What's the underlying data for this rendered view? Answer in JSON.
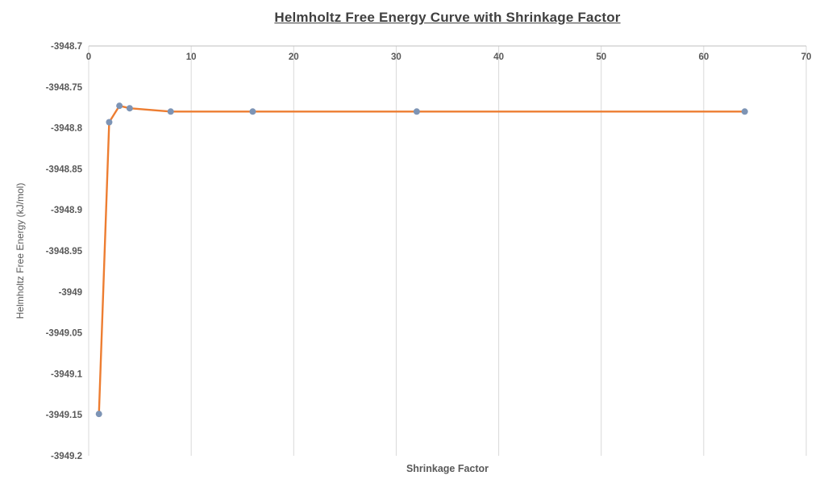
{
  "chart_data": {
    "type": "line",
    "title": "Helmholtz Free Energy Curve with Shrinkage Factor",
    "xlabel": "Shrinkage Factor",
    "ylabel": "Helmholtz Free Energy (kJ/mol)",
    "x": [
      1,
      2,
      3,
      4,
      8,
      16,
      32,
      64
    ],
    "y": [
      -3949.149,
      -3948.793,
      -3948.773,
      -3948.776,
      -3948.78,
      -3948.78,
      -3948.78,
      -3948.78
    ],
    "xlim": [
      0,
      70
    ],
    "ylim": [
      -3949.2,
      -3948.7
    ],
    "x_ticks": [
      {
        "value": 0,
        "label": "0"
      },
      {
        "value": 10,
        "label": "10"
      },
      {
        "value": 20,
        "label": "20"
      },
      {
        "value": 30,
        "label": "30"
      },
      {
        "value": 40,
        "label": "40"
      },
      {
        "value": 50,
        "label": "50"
      },
      {
        "value": 60,
        "label": "60"
      },
      {
        "value": 70,
        "label": "70"
      }
    ],
    "y_ticks": [
      {
        "value": -3948.7,
        "label": "-3948.7"
      },
      {
        "value": -3948.75,
        "label": "-3948.75"
      },
      {
        "value": -3948.8,
        "label": "-3948.8"
      },
      {
        "value": -3948.85,
        "label": "-3948.85"
      },
      {
        "value": -3948.9,
        "label": "-3948.9"
      },
      {
        "value": -3948.95,
        "label": "-3948.95"
      },
      {
        "value": -3949,
        "label": "-3949"
      },
      {
        "value": -3949.05,
        "label": "-3949.05"
      },
      {
        "value": -3949.1,
        "label": "-3949.1"
      },
      {
        "value": -3949.15,
        "label": "-3949.15"
      },
      {
        "value": -3949.2,
        "label": "-3949.2"
      }
    ],
    "grid": "vertical-only",
    "legend": "none",
    "colors": {
      "line": "#ED7D31",
      "marker": "#7D94B5",
      "gridline": "#D9D9D9",
      "axis_line": "#BFBFBF",
      "tick_text": "#595959",
      "title_text": "#404040"
    }
  }
}
